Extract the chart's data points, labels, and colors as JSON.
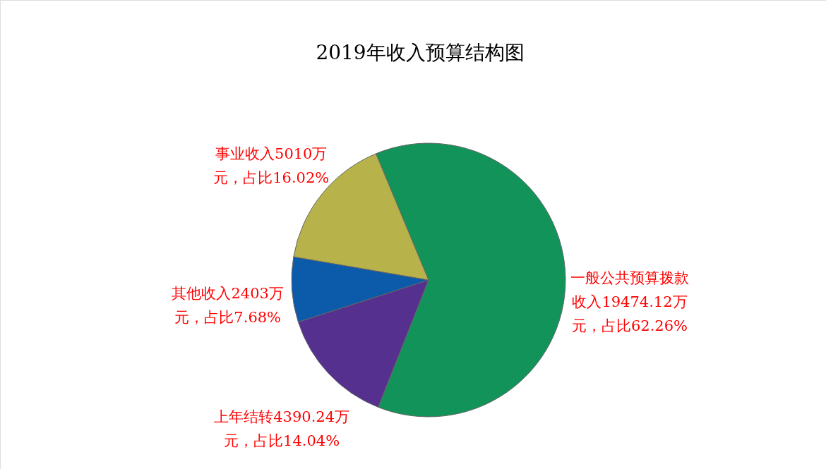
{
  "chart_data": {
    "type": "pie",
    "title": "2019年收入预算结构图",
    "categories": [
      "一般公共预算拨款收入",
      "上年结转",
      "其他收入",
      "事业收入"
    ],
    "values": [
      19474.12,
      4390.24,
      2403,
      5010
    ],
    "colors": [
      "#12935a",
      "#56308e",
      "#0c5aaa",
      "#b7b24a"
    ],
    "value_labels": [
      "19474.12万元，占比62.26%",
      "4390.24万元，占比14.04%",
      "2403万元，占比7.68%",
      "5010万元，占比16.02%"
    ],
    "legend": false
  }
}
